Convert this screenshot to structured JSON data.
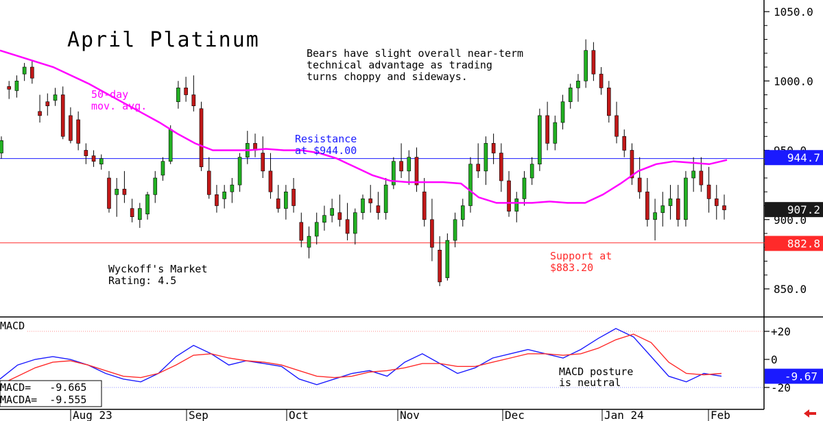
{
  "chart_data": [
    {
      "type": "candlestick",
      "title": "April Platinum",
      "ylim": [
        828,
        1058
      ],
      "y_ticks": [
        850,
        900,
        950,
        1000,
        1050
      ],
      "y_tick_labels": [
        "850.0",
        "900.0",
        "950.0",
        "1000.0",
        "1050.0"
      ],
      "x_tick_labels": [
        "Aug 23",
        "Sep",
        "Oct",
        "Nov",
        "Dec",
        "Jan 24",
        "Feb"
      ],
      "annotations": {
        "commentary": [
          "Bears have slight overall near-term",
          "technical advantage as trading",
          "turns choppy and sideways."
        ],
        "ma_label": [
          "50-day",
          "mov. avg."
        ],
        "resistance_label": [
          "Resistance",
          "at $944.00"
        ],
        "support_label": [
          "Support at",
          "$883.20"
        ],
        "rating_label": [
          "Wyckoff's Market",
          "Rating: 4.5"
        ]
      },
      "lines": {
        "resistance": 944.0,
        "support": 883.2
      },
      "price_tags": [
        {
          "label": "944.7",
          "value": 944.7,
          "color": "#1a1aff"
        },
        {
          "label": "907.2",
          "value": 907.2,
          "color": "#1a1a1a"
        },
        {
          "label": "882.8",
          "value": 882.8,
          "color": "#ff2a2a"
        }
      ],
      "series": [
        {
          "name": "50-day mov. avg.",
          "color": "#ff00ff",
          "values": [
            1022,
            1018,
            1014,
            1010,
            1004,
            998,
            991,
            984,
            977,
            970,
            962,
            955,
            950,
            950,
            950,
            951,
            950,
            950,
            948,
            944,
            938,
            932,
            928,
            927,
            927,
            927,
            926,
            916,
            912,
            912,
            912,
            913,
            912,
            912,
            918,
            926,
            935,
            940,
            942,
            941,
            940,
            943
          ]
        }
      ],
      "candles_note": "Daily OHLC estimated from chart; one candle per trading day, open/high/low/close in $",
      "candles": [
        [
          948,
          960,
          944,
          957
        ],
        [
          996,
          1000,
          987,
          994
        ],
        [
          993,
          1004,
          988,
          1000
        ],
        [
          1005,
          1013,
          1000,
          1010
        ],
        [
          1010,
          1015,
          998,
          1002
        ],
        [
          978,
          990,
          970,
          975
        ],
        [
          985,
          991,
          975,
          982
        ],
        [
          986,
          995,
          982,
          990
        ],
        [
          990,
          996,
          958,
          960
        ],
        [
          975,
          981,
          955,
          957
        ],
        [
          972,
          978,
          950,
          955
        ],
        [
          950,
          955,
          940,
          946
        ],
        [
          946,
          950,
          938,
          942
        ],
        [
          940,
          947,
          936,
          944
        ],
        [
          930,
          935,
          905,
          908
        ],
        [
          918,
          930,
          902,
          922
        ],
        [
          922,
          935,
          912,
          918
        ],
        [
          908,
          915,
          898,
          902
        ],
        [
          900,
          912,
          894,
          908
        ],
        [
          904,
          920,
          900,
          918
        ],
        [
          918,
          935,
          912,
          930
        ],
        [
          932,
          945,
          928,
          942
        ],
        [
          942,
          968,
          940,
          965
        ],
        [
          985,
          1000,
          980,
          995
        ],
        [
          995,
          1003,
          985,
          990
        ],
        [
          990,
          1004,
          978,
          982
        ],
        [
          980,
          985,
          935,
          938
        ],
        [
          935,
          945,
          915,
          918
        ],
        [
          918,
          925,
          905,
          910
        ],
        [
          915,
          925,
          908,
          920
        ],
        [
          920,
          930,
          912,
          925
        ],
        [
          925,
          948,
          920,
          945
        ],
        [
          945,
          964,
          940,
          955
        ],
        [
          955,
          962,
          945,
          950
        ],
        [
          948,
          960,
          930,
          935
        ],
        [
          935,
          948,
          915,
          920
        ],
        [
          915,
          925,
          905,
          908
        ],
        [
          908,
          925,
          900,
          920
        ],
        [
          922,
          930,
          905,
          910
        ],
        [
          898,
          905,
          880,
          885
        ],
        [
          880,
          895,
          872,
          888
        ],
        [
          888,
          905,
          882,
          898
        ],
        [
          898,
          910,
          892,
          903
        ],
        [
          903,
          915,
          898,
          908
        ],
        [
          905,
          918,
          895,
          900
        ],
        [
          900,
          912,
          885,
          890
        ],
        [
          890,
          908,
          882,
          905
        ],
        [
          905,
          918,
          900,
          915
        ],
        [
          915,
          925,
          905,
          912
        ],
        [
          910,
          920,
          900,
          905
        ],
        [
          905,
          930,
          900,
          925
        ],
        [
          925,
          945,
          922,
          942
        ],
        [
          942,
          955,
          930,
          935
        ],
        [
          935,
          950,
          925,
          945
        ],
        [
          945,
          952,
          920,
          925
        ],
        [
          920,
          930,
          895,
          900
        ],
        [
          900,
          915,
          870,
          880
        ],
        [
          878,
          888,
          852,
          855
        ],
        [
          858,
          890,
          856,
          885
        ],
        [
          885,
          905,
          880,
          900
        ],
        [
          900,
          915,
          895,
          910
        ],
        [
          910,
          945,
          905,
          940
        ],
        [
          940,
          955,
          930,
          935
        ],
        [
          935,
          960,
          925,
          955
        ],
        [
          955,
          962,
          940,
          948
        ],
        [
          948,
          955,
          920,
          928
        ],
        [
          928,
          935,
          902,
          906
        ],
        [
          906,
          920,
          898,
          915
        ],
        [
          915,
          935,
          910,
          930
        ],
        [
          930,
          945,
          925,
          940
        ],
        [
          940,
          980,
          935,
          975
        ],
        [
          975,
          985,
          950,
          955
        ],
        [
          955,
          975,
          950,
          970
        ],
        [
          970,
          990,
          965,
          985
        ],
        [
          985,
          998,
          980,
          995
        ],
        [
          995,
          1005,
          985,
          1000
        ],
        [
          1000,
          1030,
          995,
          1022
        ],
        [
          1022,
          1028,
          1000,
          1005
        ],
        [
          1005,
          1010,
          990,
          995
        ],
        [
          995,
          1000,
          970,
          975
        ],
        [
          975,
          985,
          955,
          960
        ],
        [
          960,
          965,
          945,
          950
        ],
        [
          950,
          955,
          925,
          930
        ],
        [
          930,
          945,
          915,
          920
        ],
        [
          920,
          930,
          895,
          900
        ],
        [
          900,
          915,
          885,
          905
        ],
        [
          905,
          920,
          895,
          910
        ],
        [
          910,
          925,
          900,
          915
        ],
        [
          915,
          925,
          895,
          900
        ],
        [
          900,
          935,
          895,
          930
        ],
        [
          930,
          945,
          920,
          935
        ],
        [
          935,
          945,
          920,
          925
        ],
        [
          925,
          938,
          905,
          915
        ],
        [
          915,
          925,
          900,
          910
        ],
        [
          910,
          918,
          900,
          907
        ]
      ]
    },
    {
      "type": "line",
      "title": "MACD",
      "ylim": [
        -24,
        28
      ],
      "y_ticks": [
        20,
        0,
        -20
      ],
      "y_tick_labels": [
        "+20",
        "0",
        "-20"
      ],
      "readout": [
        "MACD=   -9.665",
        "MACDA=  -9.555"
      ],
      "macd_tag": "-9.67",
      "annotation": [
        "MACD posture",
        "is neutral"
      ],
      "series": [
        {
          "name": "MACD",
          "color": "#1a1aff",
          "values": [
            -14,
            -4,
            0,
            2,
            0,
            -4,
            -10,
            -14,
            -16,
            -10,
            2,
            10,
            4,
            -4,
            -1,
            -3,
            -5,
            -14,
            -18,
            -14,
            -10,
            -8,
            -12,
            -2,
            4,
            -3,
            -10,
            -6,
            1,
            4,
            7,
            4,
            1,
            7,
            15,
            22,
            16,
            2,
            -12,
            -16,
            -10,
            -12
          ]
        },
        {
          "name": "MACDA",
          "color": "#ff2a2a",
          "values": [
            -18,
            -12,
            -6,
            -2,
            -1,
            -4,
            -8,
            -12,
            -13,
            -10,
            -4,
            3,
            4,
            1,
            -1,
            -2,
            -4,
            -8,
            -12,
            -13,
            -12,
            -9,
            -8,
            -6,
            -3,
            -3,
            -5,
            -5,
            -2,
            1,
            4,
            4,
            3,
            4,
            8,
            14,
            18,
            12,
            -2,
            -10,
            -11,
            -10
          ]
        }
      ]
    }
  ],
  "nav": {
    "arrow_icon": "left-arrow-icon"
  }
}
